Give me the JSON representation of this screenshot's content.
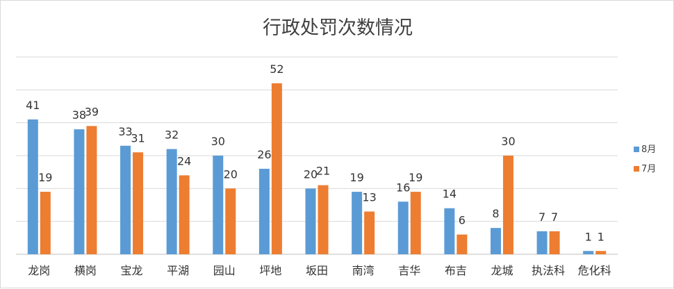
{
  "chart_data": {
    "type": "bar",
    "title": "行政处罚次数情况",
    "categories": [
      "龙岗",
      "横岗",
      "宝龙",
      "平湖",
      "园山",
      "坪地",
      "坂田",
      "南湾",
      "吉华",
      "布吉",
      "龙城",
      "执法科",
      "危化科"
    ],
    "series": [
      {
        "name": "8月",
        "color": "#5B9BD5",
        "values": [
          41,
          38,
          33,
          32,
          30,
          26,
          20,
          19,
          16,
          14,
          8,
          7,
          1
        ]
      },
      {
        "name": "7月",
        "color": "#ED7D31",
        "values": [
          19,
          39,
          31,
          24,
          20,
          52,
          21,
          13,
          19,
          6,
          30,
          7,
          1
        ]
      }
    ],
    "ylim": [
      0,
      60
    ],
    "grid": true,
    "legend_position": "right",
    "data_labels": true
  }
}
